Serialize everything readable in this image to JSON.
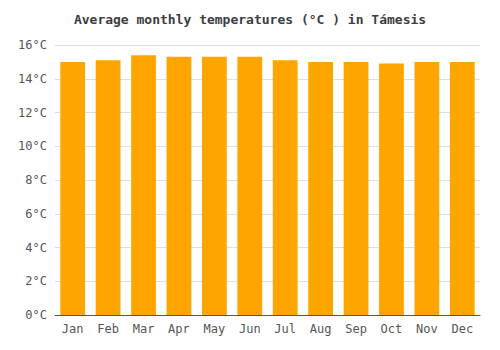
{
  "chart_data": {
    "type": "bar",
    "title": "Average monthly temperatures (°C ) in Támesis",
    "categories": [
      "Jan",
      "Feb",
      "Mar",
      "Apr",
      "May",
      "Jun",
      "Jul",
      "Aug",
      "Sep",
      "Oct",
      "Nov",
      "Dec"
    ],
    "values": [
      15.0,
      15.1,
      15.4,
      15.3,
      15.3,
      15.3,
      15.1,
      15.0,
      15.0,
      14.9,
      15.0,
      15.0
    ],
    "color": "#FFA500",
    "ylim": [
      0,
      16
    ],
    "yticks": [
      {
        "value": 0,
        "label": "0°C"
      },
      {
        "value": 2,
        "label": "2°C"
      },
      {
        "value": 4,
        "label": "4°C"
      },
      {
        "value": 6,
        "label": "6°C"
      },
      {
        "value": 8,
        "label": "8°C"
      },
      {
        "value": 10,
        "label": "10°C"
      },
      {
        "value": 12,
        "label": "12°C"
      },
      {
        "value": 14,
        "label": "14°C"
      },
      {
        "value": 16,
        "label": "16°C"
      }
    ],
    "grid": true
  }
}
